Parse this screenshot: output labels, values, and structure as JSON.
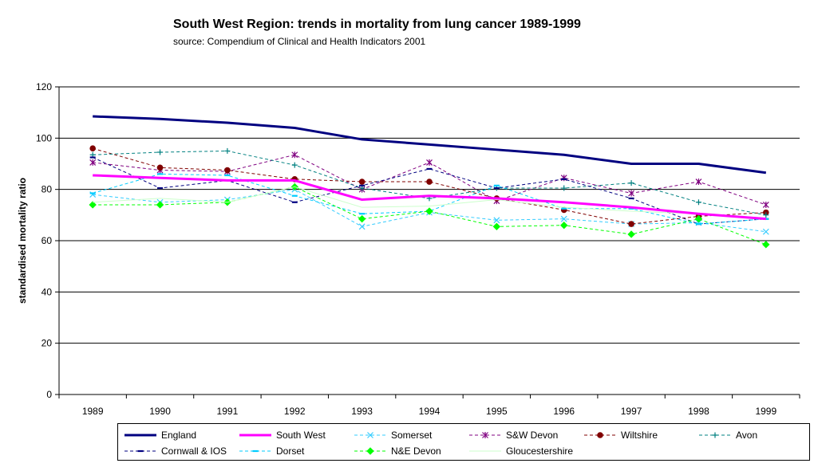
{
  "title": "South West Region:  trends in mortality from lung cancer 1989-1999",
  "subtitle": "source: Compendium of Clinical and Health Indicators  2001",
  "chart_data": {
    "type": "line",
    "title": "South West Region:  trends in mortality from lung cancer 1989-1999",
    "subtitle": "source: Compendium of Clinical and Health Indicators  2001",
    "ylabel": "standardised mortality ratio",
    "xlabel": "",
    "categories": [
      "1989",
      "1990",
      "1991",
      "1992",
      "1993",
      "1994",
      "1995",
      "1996",
      "1997",
      "1998",
      "1999"
    ],
    "ylim": [
      0,
      120
    ],
    "yticks": [
      0,
      20,
      40,
      60,
      80,
      100,
      120
    ],
    "grid": "horizontal",
    "legend_position": "bottom",
    "series": [
      {
        "name": "England",
        "color": "#000080",
        "style": "solid-thick",
        "marker": "none",
        "values": [
          108.5,
          107.5,
          106,
          104,
          99.5,
          97.5,
          95.5,
          93.5,
          90,
          90,
          86.5
        ]
      },
      {
        "name": "South West",
        "color": "#ff00ff",
        "style": "solid-thick",
        "marker": "none",
        "values": [
          85.5,
          84.5,
          83.5,
          83.5,
          76,
          77.5,
          76.5,
          75,
          73,
          70.5,
          68.5
        ]
      },
      {
        "name": "Somerset",
        "color": "#33ccff",
        "style": "dashed",
        "marker": "x",
        "values": [
          78,
          75,
          76,
          80,
          65.5,
          71,
          68,
          68.5,
          66.5,
          67,
          63.5
        ]
      },
      {
        "name": "S&W Devon",
        "color": "#800080",
        "style": "dashed",
        "marker": "asterisk",
        "values": [
          90.5,
          87.5,
          87,
          93.5,
          80,
          90.5,
          75.5,
          84.5,
          78.5,
          83,
          74
        ]
      },
      {
        "name": "Wiltshire",
        "color": "#800000",
        "style": "dashed",
        "marker": "circle",
        "values": [
          96,
          88.5,
          87.5,
          84,
          83,
          83,
          76.5,
          72,
          66.5,
          69.5,
          71
        ]
      },
      {
        "name": "Avon",
        "color": "#008080",
        "style": "dashed",
        "marker": "plus",
        "values": [
          93.5,
          94.5,
          95,
          89.5,
          80.5,
          76.5,
          80.5,
          80.5,
          82.5,
          75,
          70
        ]
      },
      {
        "name": "Cornwall & IOS",
        "color": "#000080",
        "style": "dashed",
        "marker": "dash",
        "values": [
          92.5,
          80.5,
          83.5,
          75,
          81.5,
          88,
          80.5,
          84,
          76.5,
          66.5,
          68.5
        ]
      },
      {
        "name": "Dorset",
        "color": "#00ccff",
        "style": "dashed",
        "marker": "dash",
        "values": [
          78.5,
          86,
          85.5,
          77.5,
          70.5,
          71.5,
          81.5,
          72.5,
          72.5,
          66.5,
          68.5
        ]
      },
      {
        "name": "N&E Devon",
        "color": "#00ff00",
        "style": "dashed",
        "marker": "diamond",
        "values": [
          74,
          74,
          75,
          81,
          68.5,
          71.5,
          65.5,
          66,
          62.5,
          68.5,
          58.5
        ]
      },
      {
        "name": "Gloucestershire",
        "color": "#ccffcc",
        "style": "solid-thin",
        "marker": "none",
        "values": [
          75,
          76.5,
          75,
          81,
          73,
          73.5,
          76,
          73,
          71.5,
          70.5,
          68.5
        ]
      }
    ]
  }
}
